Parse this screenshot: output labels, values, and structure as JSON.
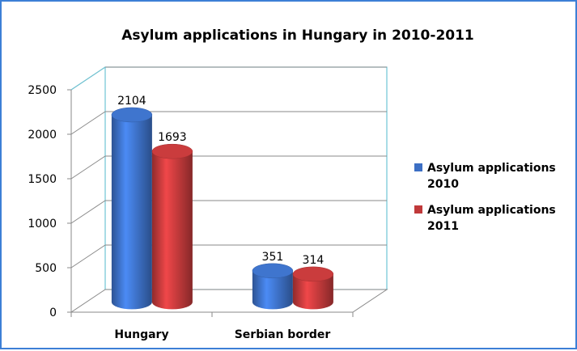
{
  "chart_data": {
    "type": "bar",
    "title": "Asylum applications in Hungary in 2010-2011",
    "categories": [
      "Hungary",
      "Serbian border"
    ],
    "series": [
      {
        "name": "Asylum applications 2010",
        "values": [
          2104,
          351
        ],
        "color": "#3c6fc4"
      },
      {
        "name": "Asylum applications 2011",
        "values": [
          1693,
          314
        ],
        "color": "#c0393a"
      }
    ],
    "yticks": [
      "0",
      "500",
      "1000",
      "1500",
      "2000",
      "2500"
    ],
    "ylim": [
      0,
      2500
    ],
    "grid": true,
    "legend_position": "right",
    "legend_lines": [
      [
        "Asylum applications",
        "2010"
      ],
      [
        "Asylum applications",
        "2011"
      ]
    ]
  }
}
